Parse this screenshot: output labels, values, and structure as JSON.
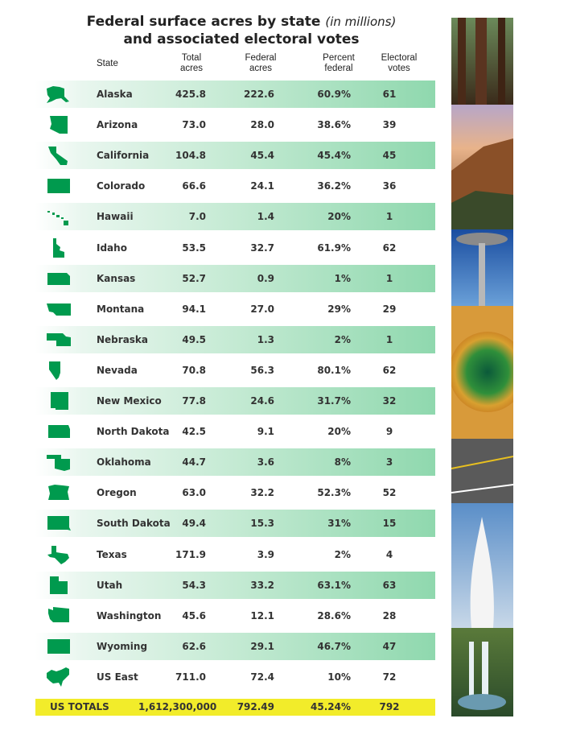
{
  "title": {
    "line1_bold": "Federal surface acres by state",
    "line1_italic": "(in millions)",
    "line2": "and associated electoral votes"
  },
  "headers": {
    "state": "State",
    "total": "Total\nacres",
    "federal": "Federal\nacres",
    "percent": "Percent\nfederal",
    "electoral": "Electoral\nvotes"
  },
  "colors": {
    "state_shape": "#009a4e",
    "row_shade": "#8fd8ae",
    "totals_bg": "#f2ec2a"
  },
  "chart_data": {
    "type": "table",
    "columns": [
      "State",
      "Total acres",
      "Federal acres",
      "Percent federal",
      "Electoral votes"
    ],
    "rows": [
      {
        "state": "Alaska",
        "total": "425.8",
        "federal": "222.6",
        "percent": "60.9%",
        "ev": "61",
        "icon": "alaska-icon"
      },
      {
        "state": "Arizona",
        "total": "73.0",
        "federal": "28.0",
        "percent": "38.6%",
        "ev": "39",
        "icon": "arizona-icon"
      },
      {
        "state": "California",
        "total": "104.8",
        "federal": "45.4",
        "percent": "45.4%",
        "ev": "45",
        "icon": "california-icon"
      },
      {
        "state": "Colorado",
        "total": "66.6",
        "federal": "24.1",
        "percent": "36.2%",
        "ev": "36",
        "icon": "colorado-icon"
      },
      {
        "state": "Hawaii",
        "total": "7.0",
        "federal": "1.4",
        "percent": "20%",
        "ev": "1",
        "icon": "hawaii-icon"
      },
      {
        "state": "Idaho",
        "total": "53.5",
        "federal": "32.7",
        "percent": "61.9%",
        "ev": "62",
        "icon": "idaho-icon"
      },
      {
        "state": "Kansas",
        "total": "52.7",
        "federal": "0.9",
        "percent": "1%",
        "ev": "1",
        "icon": "kansas-icon"
      },
      {
        "state": "Montana",
        "total": "94.1",
        "federal": "27.0",
        "percent": "29%",
        "ev": "29",
        "icon": "montana-icon"
      },
      {
        "state": "Nebraska",
        "total": "49.5",
        "federal": "1.3",
        "percent": "2%",
        "ev": "1",
        "icon": "nebraska-icon"
      },
      {
        "state": "Nevada",
        "total": "70.8",
        "federal": "56.3",
        "percent": "80.1%",
        "ev": "62",
        "icon": "nevada-icon"
      },
      {
        "state": "New Mexico",
        "total": "77.8",
        "federal": "24.6",
        "percent": "31.7%",
        "ev": "32",
        "icon": "new-mexico-icon"
      },
      {
        "state": "North Dakota",
        "total": "42.5",
        "federal": "9.1",
        "percent": "20%",
        "ev": "9",
        "icon": "north-dakota-icon"
      },
      {
        "state": "Oklahoma",
        "total": "44.7",
        "federal": "3.6",
        "percent": "8%",
        "ev": "3",
        "icon": "oklahoma-icon"
      },
      {
        "state": "Oregon",
        "total": "63.0",
        "federal": "32.2",
        "percent": "52.3%",
        "ev": "52",
        "icon": "oregon-icon"
      },
      {
        "state": "South Dakota",
        "total": "49.4",
        "federal": "15.3",
        "percent": "31%",
        "ev": "15",
        "icon": "south-dakota-icon"
      },
      {
        "state": "Texas",
        "total": "171.9",
        "federal": "3.9",
        "percent": "2%",
        "ev": "4",
        "icon": "texas-icon"
      },
      {
        "state": "Utah",
        "total": "54.3",
        "federal": "33.2",
        "percent": "63.1%",
        "ev": "63",
        "icon": "utah-icon"
      },
      {
        "state": "Washington",
        "total": "45.6",
        "federal": "12.1",
        "percent": "28.6%",
        "ev": "28",
        "icon": "washington-icon"
      },
      {
        "state": "Wyoming",
        "total": "62.6",
        "federal": "29.1",
        "percent": "46.7%",
        "ev": "47",
        "icon": "wyoming-icon"
      },
      {
        "state": "US East",
        "total": "711.0",
        "federal": "72.4",
        "percent": "10%",
        "ev": "72",
        "icon": "us-east-icon"
      }
    ],
    "totals": {
      "label": "US TOTALS",
      "total": "1,612,300,000",
      "federal": "792.49",
      "percent": "45.24%",
      "ev": "792"
    }
  },
  "photo_strip": [
    "redwood-forest-photo",
    "canyon-sunset-photo",
    "space-needle-photo",
    "hot-spring-photo",
    "highway-road-photo",
    "geyser-photo",
    "waterfall-photo"
  ]
}
